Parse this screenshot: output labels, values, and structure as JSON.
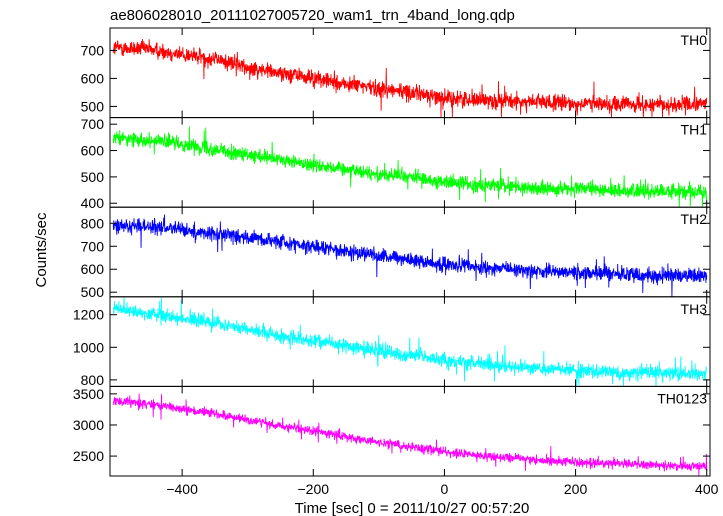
{
  "title": "ae806028010_20111027005720_wam1_trn_4band_long.qdp",
  "xlabel": "Time [sec] 0 = 2011/10/27 00:57:20",
  "ylabel": "Counts/sec",
  "chart_data": {
    "type": "line",
    "grid": false,
    "xlim": [
      -510,
      405
    ],
    "x_ticks": [
      -400,
      -200,
      0,
      200,
      400
    ],
    "x_tick_labels": [
      "−400",
      "−200",
      "0",
      "200",
      "400"
    ],
    "panels": [
      {
        "name": "TH0",
        "color": "#ff0000",
        "ylim": [
          460,
          780
        ],
        "y_ticks": [
          500,
          600,
          700
        ],
        "trend": {
          "x": [
            -505,
            -450,
            -400,
            -350,
            -300,
            -250,
            -200,
            -150,
            -100,
            -50,
            0,
            50,
            100,
            150,
            200,
            250,
            300,
            350,
            400
          ],
          "y": [
            710,
            705,
            685,
            670,
            640,
            620,
            600,
            580,
            565,
            550,
            530,
            525,
            518,
            515,
            510,
            508,
            505,
            505,
            510
          ]
        },
        "noise": 28
      },
      {
        "name": "TH1",
        "color": "#00ff00",
        "ylim": [
          385,
          725
        ],
        "y_ticks": [
          400,
          500,
          600,
          700
        ],
        "trend": {
          "x": [
            -505,
            -450,
            -400,
            -350,
            -300,
            -250,
            -200,
            -150,
            -100,
            -50,
            0,
            50,
            100,
            150,
            200,
            250,
            300,
            350,
            400
          ],
          "y": [
            650,
            640,
            625,
            605,
            580,
            565,
            545,
            530,
            510,
            500,
            480,
            470,
            465,
            455,
            455,
            450,
            445,
            445,
            440
          ]
        },
        "noise": 25
      },
      {
        "name": "TH2",
        "color": "#0000ff",
        "ylim": [
          480,
          870
        ],
        "y_ticks": [
          500,
          600,
          700,
          800
        ],
        "trend": {
          "x": [
            -505,
            -450,
            -400,
            -350,
            -300,
            -250,
            -200,
            -150,
            -100,
            -50,
            0,
            50,
            100,
            150,
            200,
            250,
            300,
            350,
            400
          ],
          "y": [
            790,
            785,
            770,
            755,
            740,
            720,
            700,
            680,
            660,
            640,
            620,
            610,
            600,
            590,
            585,
            580,
            575,
            570,
            570
          ]
        },
        "noise": 30
      },
      {
        "name": "TH3",
        "color": "#00ffff",
        "ylim": [
          760,
          1310
        ],
        "y_ticks": [
          800,
          1000,
          1200
        ],
        "trend": {
          "x": [
            -505,
            -450,
            -400,
            -350,
            -300,
            -250,
            -200,
            -150,
            -100,
            -50,
            0,
            50,
            100,
            150,
            200,
            250,
            300,
            350,
            400
          ],
          "y": [
            1240,
            1210,
            1180,
            1150,
            1110,
            1070,
            1040,
            1010,
            980,
            950,
            920,
            900,
            880,
            870,
            860,
            850,
            840,
            840,
            840
          ]
        },
        "noise": 40
      },
      {
        "name": "TH0123",
        "color": "#ff00ff",
        "ylim": [
          2180,
          3620
        ],
        "y_ticks": [
          2500,
          3000,
          3500
        ],
        "trend": {
          "x": [
            -505,
            -450,
            -400,
            -350,
            -300,
            -250,
            -200,
            -150,
            -100,
            -50,
            0,
            50,
            100,
            150,
            200,
            250,
            300,
            350,
            400
          ],
          "y": [
            3380,
            3330,
            3260,
            3180,
            3080,
            2990,
            2900,
            2810,
            2720,
            2640,
            2570,
            2510,
            2470,
            2430,
            2400,
            2380,
            2360,
            2340,
            2330
          ]
        },
        "noise": 70
      }
    ]
  }
}
